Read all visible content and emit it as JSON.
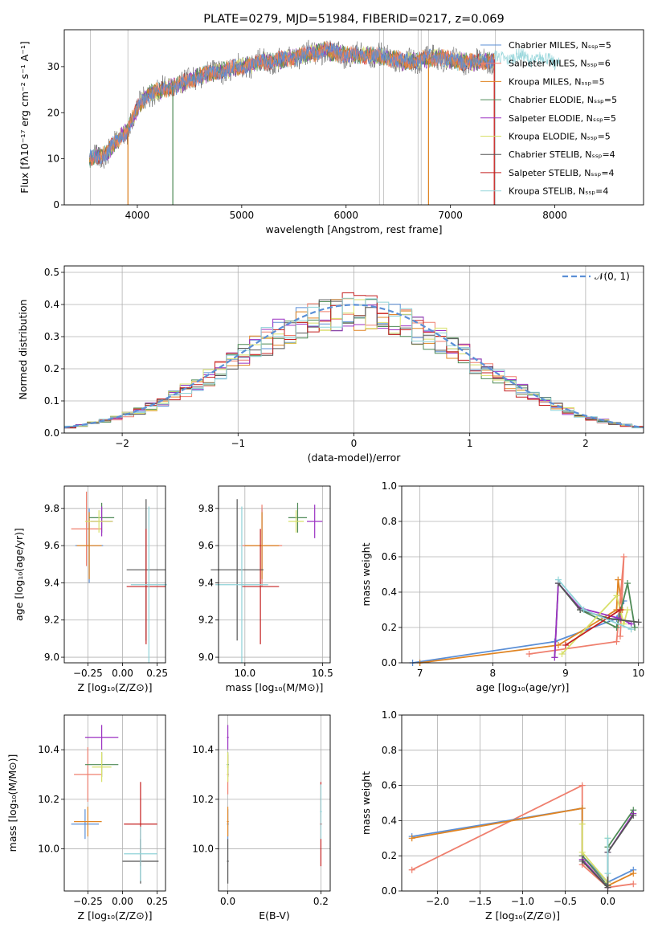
{
  "colors": {
    "series": [
      "#5b8fd6",
      "#ef7f6e",
      "#e08422",
      "#4e8a56",
      "#9b31c2",
      "#d8e06a",
      "#555555",
      "#c42020",
      "#8fd3d8"
    ],
    "grid": "#b0b0b0"
  },
  "chart_data": [
    {
      "id": "spectrum",
      "type": "line",
      "title": "PLATE=0279, MJD=51984, FIBERID=0217, z=0.069",
      "xlabel": "wavelength [Angstrom, rest frame]",
      "ylabel": "Flux [fλ10⁻¹⁷ erg cm⁻² s⁻¹ A⁻¹]",
      "xlim": [
        3300,
        8850
      ],
      "ylim": [
        0,
        38
      ],
      "xticks": [
        4000,
        5000,
        6000,
        7000,
        8000
      ],
      "yticks": [
        0,
        10,
        20,
        30
      ],
      "grid": false,
      "legend_position": "top-right",
      "series": [
        {
          "name": "Chabrier MILES, Nₛₛₚ=5"
        },
        {
          "name": "Salpeter MILES, Nₛₛₚ=6"
        },
        {
          "name": "Kroupa MILES, Nₛₛₚ=5"
        },
        {
          "name": "Chabrier ELODIE, Nₛₛₚ=5"
        },
        {
          "name": "Salpeter ELODIE, Nₛₛₚ=5"
        },
        {
          "name": "Kroupa ELODIE, Nₛₛₚ=5"
        },
        {
          "name": "Chabrier STELIB, Nₛₛₚ=4"
        },
        {
          "name": "Salpeter STELIB, Nₛₛₚ=4"
        },
        {
          "name": "Kroupa STELIB, Nₛₛₚ=4"
        }
      ],
      "continuum": [
        [
          3540,
          10
        ],
        [
          3700,
          11
        ],
        [
          3800,
          14
        ],
        [
          3900,
          16
        ],
        [
          4000,
          21
        ],
        [
          4100,
          24
        ],
        [
          4250,
          25
        ],
        [
          4400,
          26
        ],
        [
          4600,
          28
        ],
        [
          4800,
          29
        ],
        [
          5000,
          30
        ],
        [
          5200,
          31
        ],
        [
          5400,
          31.5
        ],
        [
          5600,
          32.5
        ],
        [
          5800,
          33.5
        ],
        [
          6000,
          32.5
        ],
        [
          6200,
          32.5
        ],
        [
          6400,
          32
        ],
        [
          6560,
          31
        ],
        [
          6700,
          31.5
        ],
        [
          6900,
          32
        ],
        [
          7100,
          31
        ],
        [
          7300,
          31
        ],
        [
          7500,
          32
        ],
        [
          7700,
          32
        ],
        [
          7900,
          31.5
        ],
        [
          8050,
          31
        ]
      ],
      "spikes_x": [
        3550,
        3910,
        6320,
        6360,
        6690,
        6720,
        6790,
        7430
      ]
    },
    {
      "id": "residuals",
      "type": "line",
      "xlabel": "(data-model)/error",
      "ylabel": "Normed distribution",
      "xlim": [
        -2.5,
        2.5
      ],
      "ylim": [
        0,
        0.52
      ],
      "xticks": [
        -2,
        -1,
        0,
        1,
        2
      ],
      "yticks": [
        0.0,
        0.1,
        0.2,
        0.3,
        0.4,
        0.5
      ],
      "grid": true,
      "legend_position": "top-right",
      "reference_curve": {
        "name": "𝒩(0, 1)",
        "mean": 0,
        "sd": 1
      },
      "bin_width": 0.1
    },
    {
      "id": "age-vs-Z",
      "type": "scatter",
      "xlabel": "Z [log₁₀(Z/Z⊙)]",
      "ylabel": "age  [log₁₀(age/yr)]",
      "xlim": [
        -0.42,
        0.31
      ],
      "ylim": [
        8.97,
        9.92
      ],
      "xticks": [
        -0.25,
        0.0,
        0.25
      ],
      "xtick_labels": [
        "−0.25",
        "0.00",
        "0.25"
      ],
      "yticks": [
        9.0,
        9.2,
        9.4,
        9.6,
        9.8
      ],
      "grid": true,
      "points": [
        {
          "s": 0,
          "x": -0.24,
          "y": 9.6,
          "xe": 0.1,
          "ye": 0.2
        },
        {
          "s": 1,
          "x": -0.26,
          "y": 9.69,
          "xe": 0.11,
          "ye": 0.2
        },
        {
          "s": 2,
          "x": -0.24,
          "y": 9.6,
          "xe": 0.09,
          "ye": 0.18
        },
        {
          "s": 3,
          "x": -0.15,
          "y": 9.75,
          "xe": 0.09,
          "ye": 0.08
        },
        {
          "s": 4,
          "x": -0.15,
          "y": 9.73,
          "xe": 0.08,
          "ye": 0.08
        },
        {
          "s": 5,
          "x": -0.17,
          "y": 9.73,
          "xe": 0.1,
          "ye": 0.06
        },
        {
          "s": 6,
          "x": 0.17,
          "y": 9.47,
          "xe": 0.14,
          "ye": 0.38
        },
        {
          "s": 7,
          "x": 0.17,
          "y": 9.38,
          "xe": 0.14,
          "ye": 0.31
        },
        {
          "s": 8,
          "x": 0.19,
          "y": 9.39,
          "xe": 0.13,
          "ye": 0.42
        }
      ]
    },
    {
      "id": "age-vs-mass",
      "type": "scatter",
      "xlabel": "mass [log₁₀(M/M⊙)]",
      "ylabel": "",
      "xlim": [
        9.83,
        10.55
      ],
      "ylim": [
        8.97,
        9.92
      ],
      "xticks": [
        10.0,
        10.5
      ],
      "xtick_labels": [
        "10.0",
        "10.5"
      ],
      "yticks": [
        9.0,
        9.2,
        9.4,
        9.6,
        9.8
      ],
      "grid": true,
      "points": [
        {
          "s": 0,
          "x": 10.11,
          "y": 9.6,
          "xe": 0.11,
          "ye": 0.2
        },
        {
          "s": 1,
          "x": 10.11,
          "y": 9.6,
          "xe": 0.13,
          "ye": 0.22
        },
        {
          "s": 2,
          "x": 10.11,
          "y": 9.6,
          "xe": 0.11,
          "ye": 0.18
        },
        {
          "s": 3,
          "x": 10.34,
          "y": 9.75,
          "xe": 0.06,
          "ye": 0.08
        },
        {
          "s": 4,
          "x": 10.45,
          "y": 9.73,
          "xe": 0.05,
          "ye": 0.09
        },
        {
          "s": 5,
          "x": 10.33,
          "y": 9.73,
          "xe": 0.05,
          "ye": 0.06
        },
        {
          "s": 6,
          "x": 9.95,
          "y": 9.47,
          "xe": 0.17,
          "ye": 0.38
        },
        {
          "s": 7,
          "x": 10.1,
          "y": 9.38,
          "xe": 0.12,
          "ye": 0.31
        },
        {
          "s": 8,
          "x": 9.98,
          "y": 9.39,
          "xe": 0.17,
          "ye": 0.42
        }
      ]
    },
    {
      "id": "weight-vs-age",
      "type": "line",
      "xlabel": "age  [log₁₀(age/yr)]",
      "ylabel": "mass weight",
      "xlim": [
        6.75,
        10.07
      ],
      "ylim": [
        0,
        1.0
      ],
      "xticks": [
        7,
        8,
        9,
        10
      ],
      "yticks": [
        0.0,
        0.2,
        0.4,
        0.6,
        0.8,
        1.0
      ],
      "grid": true,
      "series": [
        {
          "s": 0,
          "points": [
            [
              6.9,
              0.0
            ],
            [
              8.85,
              0.12
            ],
            [
              9.7,
              0.25
            ],
            [
              9.8,
              0.35
            ]
          ]
        },
        {
          "s": 2,
          "points": [
            [
              7.0,
              0.0
            ],
            [
              8.9,
              0.1
            ],
            [
              9.7,
              0.3
            ],
            [
              9.72,
              0.47
            ],
            [
              9.78,
              0.3
            ]
          ]
        },
        {
          "s": 1,
          "points": [
            [
              8.5,
              0.05
            ],
            [
              9.7,
              0.12
            ],
            [
              9.8,
              0.6
            ],
            [
              9.75,
              0.15
            ]
          ]
        },
        {
          "s": 3,
          "points": [
            [
              8.85,
              0.03
            ],
            [
              8.9,
              0.45
            ],
            [
              9.2,
              0.3
            ],
            [
              9.7,
              0.2
            ],
            [
              9.85,
              0.45
            ],
            [
              9.95,
              0.2
            ]
          ]
        },
        {
          "s": 4,
          "points": [
            [
              8.85,
              0.03
            ],
            [
              8.9,
              0.45
            ],
            [
              9.2,
              0.31
            ],
            [
              9.75,
              0.25
            ],
            [
              9.9,
              0.22
            ]
          ]
        },
        {
          "s": 5,
          "points": [
            [
              8.95,
              0.05
            ],
            [
              9.7,
              0.38
            ],
            [
              9.8,
              0.22
            ],
            [
              9.85,
              0.3
            ]
          ]
        },
        {
          "s": 6,
          "points": [
            [
              8.9,
              0.45
            ],
            [
              9.2,
              0.3
            ],
            [
              9.6,
              0.25
            ],
            [
              10.0,
              0.23
            ]
          ]
        },
        {
          "s": 7,
          "points": [
            [
              9.0,
              0.1
            ],
            [
              9.75,
              0.3
            ]
          ]
        },
        {
          "s": 8,
          "points": [
            [
              8.9,
              0.47
            ],
            [
              9.25,
              0.3
            ],
            [
              9.9,
              0.19
            ]
          ]
        }
      ]
    },
    {
      "id": "mass-vs-Z",
      "type": "scatter",
      "xlabel": "Z [log₁₀(Z/Z⊙)]",
      "ylabel": "mass [log₁₀(M/M⊙)]",
      "xlim": [
        -0.42,
        0.31
      ],
      "ylim": [
        9.83,
        10.54
      ],
      "xticks": [
        -0.25,
        0.0,
        0.25
      ],
      "xtick_labels": [
        "−0.25",
        "0.00",
        "0.25"
      ],
      "yticks": [
        10.0,
        10.2,
        10.4
      ],
      "grid": true,
      "points": [
        {
          "s": 0,
          "x": -0.27,
          "y": 10.1,
          "xe": 0.1,
          "ye": 0.06
        },
        {
          "s": 1,
          "x": -0.25,
          "y": 10.3,
          "xe": 0.1,
          "ye": 0.11
        },
        {
          "s": 2,
          "x": -0.25,
          "y": 10.11,
          "xe": 0.1,
          "ye": 0.06
        },
        {
          "s": 3,
          "x": -0.15,
          "y": 10.34,
          "xe": 0.12,
          "ye": 0.05
        },
        {
          "s": 4,
          "x": -0.15,
          "y": 10.45,
          "xe": 0.12,
          "ye": 0.05
        },
        {
          "s": 5,
          "x": -0.15,
          "y": 10.33,
          "xe": 0.07,
          "ye": 0.06
        },
        {
          "s": 6,
          "x": 0.13,
          "y": 9.95,
          "xe": 0.13,
          "ye": 0.09
        },
        {
          "s": 7,
          "x": 0.13,
          "y": 10.1,
          "xe": 0.12,
          "ye": 0.17
        },
        {
          "s": 8,
          "x": 0.13,
          "y": 9.98,
          "xe": 0.12,
          "ye": 0.11
        }
      ]
    },
    {
      "id": "mass-vs-ebv",
      "type": "scatter",
      "xlabel": "E(B-V)",
      "ylabel": "",
      "xlim": [
        -0.02,
        0.22
      ],
      "ylim": [
        9.83,
        10.54
      ],
      "xticks": [
        0.0,
        0.2
      ],
      "xtick_labels": [
        "0.0",
        "0.2"
      ],
      "yticks": [
        10.0,
        10.2,
        10.4
      ],
      "grid": true,
      "points": [
        {
          "s": 0,
          "x": 0.0,
          "y": 10.1,
          "xe": 0.002,
          "ye": 0.06
        },
        {
          "s": 1,
          "x": 0.0,
          "y": 10.3,
          "xe": 0.002,
          "ye": 0.08
        },
        {
          "s": 2,
          "x": 0.0,
          "y": 10.11,
          "xe": 0.002,
          "ye": 0.06
        },
        {
          "s": 3,
          "x": 0.0,
          "y": 10.34,
          "xe": 0.002,
          "ye": 0.05
        },
        {
          "s": 4,
          "x": 0.0,
          "y": 10.45,
          "xe": 0.002,
          "ye": 0.05
        },
        {
          "s": 5,
          "x": 0.0,
          "y": 10.33,
          "xe": 0.002,
          "ye": 0.06
        },
        {
          "s": 6,
          "x": 0.0,
          "y": 9.95,
          "xe": 0.002,
          "ye": 0.09
        },
        {
          "s": 7,
          "x": 0.2,
          "y": 10.1,
          "xe": 0.002,
          "ye": 0.17
        },
        {
          "s": 8,
          "x": 0.2,
          "y": 10.15,
          "xe": 0.002,
          "ye": 0.11
        }
      ]
    },
    {
      "id": "weight-vs-Z",
      "type": "line",
      "xlabel": "Z [log₁₀(Z/Z⊙)]",
      "ylabel": "mass weight",
      "xlim": [
        -2.42,
        0.42
      ],
      "ylim": [
        0,
        1.0
      ],
      "xticks": [
        -2.0,
        -1.5,
        -1.0,
        -0.5,
        0.0
      ],
      "xtick_labels": [
        "−2.0",
        "−1.5",
        "−1.0",
        "−0.5",
        "0.0"
      ],
      "yticks": [
        0.0,
        0.2,
        0.4,
        0.6,
        0.8,
        1.0
      ],
      "grid": true,
      "series": [
        {
          "s": 1,
          "points": [
            [
              -2.3,
              0.12
            ],
            [
              -0.3,
              0.6
            ],
            [
              -0.3,
              0.15
            ],
            [
              0.0,
              0.02
            ],
            [
              0.3,
              0.04
            ]
          ]
        },
        {
          "s": 0,
          "points": [
            [
              -2.3,
              0.31
            ],
            [
              -0.3,
              0.47
            ],
            [
              -0.3,
              0.2
            ],
            [
              0.0,
              0.05
            ],
            [
              0.3,
              0.12
            ]
          ]
        },
        {
          "s": 2,
          "points": [
            [
              -2.3,
              0.3
            ],
            [
              -0.3,
              0.47
            ],
            [
              -0.3,
              0.2
            ],
            [
              0.0,
              0.03
            ],
            [
              0.3,
              0.1
            ]
          ]
        },
        {
          "s": 3,
          "points": [
            [
              -0.3,
              0.2
            ],
            [
              0.0,
              0.03
            ],
            [
              0.0,
              0.25
            ],
            [
              0.3,
              0.46
            ]
          ]
        },
        {
          "s": 4,
          "points": [
            [
              -0.3,
              0.18
            ],
            [
              0.0,
              0.02
            ],
            [
              0.0,
              0.22
            ],
            [
              0.3,
              0.44
            ]
          ]
        },
        {
          "s": 5,
          "points": [
            [
              -0.3,
              0.38
            ],
            [
              -0.3,
              0.22
            ],
            [
              0.0,
              0.05
            ],
            [
              0.0,
              0.3
            ]
          ]
        },
        {
          "s": 6,
          "points": [
            [
              -0.3,
              0.17
            ],
            [
              0.0,
              0.02
            ],
            [
              0.0,
              0.22
            ],
            [
              0.3,
              0.43
            ]
          ]
        },
        {
          "s": 8,
          "points": [
            [
              0.0,
              0.3
            ],
            [
              0.0,
              0.1
            ]
          ]
        }
      ]
    }
  ]
}
